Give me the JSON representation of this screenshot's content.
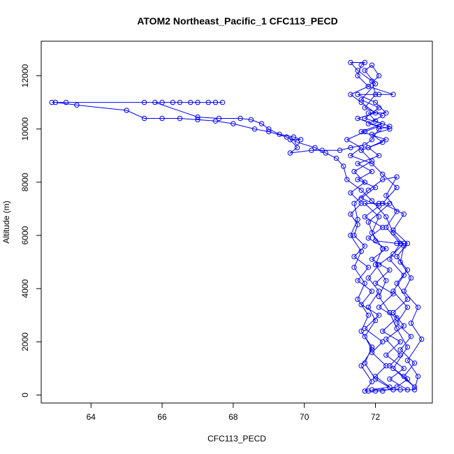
{
  "chart_data": {
    "type": "scatter",
    "title": "ATOM2 Northeast_Pacific_1 CFC113_PECD",
    "xlabel": "CFC113_PECD",
    "ylabel": "Altitude (m)",
    "xlim": [
      62.6,
      73.6
    ],
    "ylim": [
      -300,
      13300
    ],
    "x_ticks": [
      64,
      66,
      68,
      70,
      72
    ],
    "x_tick_labels": [
      "64",
      "66",
      "68",
      "70",
      "72"
    ],
    "y_ticks": [
      0,
      2000,
      4000,
      6000,
      8000,
      10000,
      12000
    ],
    "y_tick_labels": [
      "0",
      "2000",
      "4000",
      "6000",
      "8000",
      "10000",
      "12000"
    ],
    "grid": false,
    "legend": "none",
    "color": "#0000ff",
    "marker": "open-circle",
    "series": [
      {
        "points": [
          [
            71.8,
            150
          ],
          [
            72.2,
            150
          ],
          [
            72.6,
            300
          ],
          [
            72.9,
            600
          ],
          [
            72.4,
            1100
          ],
          [
            72.7,
            1500
          ],
          [
            72.3,
            2100
          ],
          [
            72.8,
            2600
          ],
          [
            72.5,
            3100
          ],
          [
            72.9,
            3600
          ],
          [
            72.6,
            4200
          ],
          [
            72.9,
            4700
          ],
          [
            72.6,
            5200
          ],
          [
            72.9,
            5700
          ],
          [
            72.5,
            6200
          ],
          [
            72.8,
            6800
          ],
          [
            72.2,
            7200
          ],
          [
            72.6,
            7800
          ],
          [
            72.2,
            8300
          ],
          [
            71.9,
            8700
          ],
          [
            71.3,
            9000
          ],
          [
            71.6,
            9300
          ],
          [
            71.2,
            9600
          ],
          [
            71.7,
            9900
          ],
          [
            72.1,
            10100
          ],
          [
            71.5,
            10400
          ],
          [
            72.0,
            10600
          ],
          [
            71.6,
            11000
          ],
          [
            71.3,
            11300
          ],
          [
            71.8,
            11600
          ],
          [
            71.5,
            12000
          ],
          [
            71.6,
            12400
          ],
          [
            71.7,
            12500
          ],
          [
            71.3,
            12500
          ],
          [
            71.5,
            12200
          ],
          [
            71.9,
            11800
          ],
          [
            72.0,
            11300
          ],
          [
            71.7,
            10800
          ],
          [
            72.2,
            10500
          ],
          [
            71.8,
            10200
          ],
          [
            72.4,
            10000
          ],
          [
            71.9,
            9800
          ],
          [
            72.2,
            9500
          ],
          [
            71.6,
            9200
          ],
          [
            71.9,
            8800
          ],
          [
            71.4,
            8400
          ],
          [
            71.7,
            8000
          ],
          [
            71.3,
            7600
          ],
          [
            71.6,
            7200
          ],
          [
            71.3,
            6800
          ],
          [
            71.5,
            6400
          ],
          [
            71.4,
            6000
          ],
          [
            71.7,
            5600
          ],
          [
            71.4,
            5200
          ],
          [
            71.8,
            4800
          ],
          [
            71.5,
            4300
          ],
          [
            71.9,
            3900
          ],
          [
            71.6,
            3400
          ],
          [
            72.1,
            3000
          ],
          [
            71.7,
            2500
          ],
          [
            72.2,
            2000
          ],
          [
            71.9,
            1600
          ],
          [
            72.3,
            1100
          ],
          [
            72.0,
            700
          ],
          [
            72.4,
            300
          ],
          [
            71.9,
            200
          ],
          [
            72.7,
            200
          ],
          [
            73.1,
            200
          ],
          [
            73.2,
            700
          ],
          [
            72.9,
            1300
          ],
          [
            73.3,
            2100
          ],
          [
            73.0,
            2700
          ],
          [
            73.2,
            3300
          ],
          [
            72.8,
            3900
          ],
          [
            73.0,
            4400
          ],
          [
            72.7,
            5000
          ],
          [
            72.8,
            5600
          ],
          [
            72.5,
            6100
          ],
          [
            72.3,
            6700
          ],
          [
            71.9,
            7300
          ],
          [
            71.6,
            7700
          ],
          [
            71.2,
            8100
          ],
          [
            71.1,
            8600
          ],
          [
            70.9,
            8900
          ],
          [
            70.6,
            9100
          ],
          [
            70.3,
            9300
          ],
          [
            69.8,
            9500
          ],
          [
            69.5,
            9700
          ],
          [
            69.0,
            9900
          ],
          [
            68.6,
            10000
          ],
          [
            68.0,
            10200
          ],
          [
            67.5,
            10300
          ],
          [
            67.0,
            10350
          ],
          [
            66.5,
            10400
          ],
          [
            66.0,
            10400
          ],
          [
            65.5,
            10400
          ],
          [
            65.0,
            10700
          ],
          [
            63.6,
            10900
          ],
          [
            63.0,
            11000
          ],
          [
            62.9,
            11000
          ],
          [
            63.3,
            11000
          ],
          [
            65.5,
            11000
          ],
          [
            66.0,
            11000
          ],
          [
            66.5,
            11000
          ],
          [
            67.0,
            11000
          ],
          [
            67.5,
            11000
          ],
          [
            67.7,
            11000
          ],
          [
            67.3,
            11000
          ],
          [
            66.8,
            11000
          ],
          [
            66.3,
            11000
          ],
          [
            65.8,
            11000
          ],
          [
            67.0,
            10450
          ],
          [
            67.6,
            10400
          ],
          [
            68.2,
            10400
          ],
          [
            68.5,
            10350
          ],
          [
            68.8,
            10200
          ],
          [
            69.0,
            10000
          ],
          [
            69.3,
            9800
          ],
          [
            69.7,
            9700
          ],
          [
            69.9,
            9600
          ],
          [
            69.6,
            9600
          ],
          [
            69.8,
            9300
          ],
          [
            69.6,
            9100
          ],
          [
            70.2,
            9200
          ],
          [
            70.5,
            9200
          ],
          [
            71.0,
            9200
          ],
          [
            71.3,
            9300
          ],
          [
            71.7,
            9400
          ],
          [
            71.9,
            9600
          ],
          [
            72.1,
            10000
          ],
          [
            72.4,
            10100
          ],
          [
            72.0,
            10300
          ],
          [
            71.8,
            10600
          ],
          [
            72.3,
            10600
          ],
          [
            72.0,
            11000
          ],
          [
            71.5,
            11300
          ],
          [
            72.1,
            11300
          ],
          [
            72.5,
            11300
          ],
          [
            71.8,
            11600
          ],
          [
            72.1,
            12000
          ],
          [
            71.9,
            12400
          ],
          [
            71.7,
            12200
          ],
          [
            72.0,
            11700
          ],
          [
            71.6,
            11100
          ],
          [
            72.1,
            10800
          ],
          [
            71.7,
            10400
          ],
          [
            72.2,
            10200
          ],
          [
            71.6,
            9900
          ],
          [
            72.3,
            9600
          ],
          [
            71.8,
            9300
          ],
          [
            72.1,
            9000
          ],
          [
            71.5,
            8700
          ],
          [
            71.9,
            8400
          ],
          [
            71.5,
            8100
          ],
          [
            72.0,
            7800
          ],
          [
            71.6,
            7400
          ],
          [
            72.1,
            7100
          ],
          [
            71.7,
            6700
          ],
          [
            72.2,
            6300
          ],
          [
            71.8,
            5900
          ],
          [
            72.3,
            5500
          ],
          [
            71.9,
            5100
          ],
          [
            72.4,
            4700
          ],
          [
            72.0,
            4200
          ],
          [
            72.5,
            3800
          ],
          [
            72.1,
            3300
          ],
          [
            72.6,
            2900
          ],
          [
            72.2,
            2400
          ],
          [
            72.7,
            2000
          ],
          [
            72.3,
            1500
          ],
          [
            72.8,
            1000
          ],
          [
            72.4,
            600
          ],
          [
            72.9,
            200
          ],
          [
            72.5,
            200
          ],
          [
            72.0,
            600
          ],
          [
            71.7,
            1200
          ],
          [
            71.9,
            1800
          ],
          [
            71.6,
            2400
          ],
          [
            71.8,
            3000
          ],
          [
            71.5,
            3600
          ],
          [
            71.7,
            4200
          ],
          [
            71.4,
            4800
          ],
          [
            71.6,
            5400
          ],
          [
            71.3,
            6000
          ],
          [
            71.5,
            6600
          ],
          [
            71.4,
            7200
          ],
          [
            71.8,
            7700
          ],
          [
            72.2,
            8100
          ],
          [
            72.6,
            8200
          ],
          [
            72.3,
            7500
          ],
          [
            72.6,
            6900
          ],
          [
            72.3,
            6300
          ],
          [
            72.7,
            5700
          ],
          [
            72.4,
            5100
          ],
          [
            72.8,
            4500
          ],
          [
            72.5,
            3900
          ],
          [
            72.9,
            3300
          ],
          [
            72.6,
            2700
          ],
          [
            73.0,
            2200
          ],
          [
            72.7,
            1700
          ],
          [
            73.1,
            1200
          ],
          [
            72.8,
            700
          ],
          [
            73.1,
            300
          ],
          [
            72.5,
            1000
          ],
          [
            72.9,
            1800
          ],
          [
            72.6,
            2500
          ],
          [
            72.4,
            3100
          ],
          [
            72.1,
            3700
          ],
          [
            72.3,
            4300
          ],
          [
            72.0,
            4900
          ],
          [
            72.2,
            5500
          ],
          [
            71.9,
            6100
          ],
          [
            72.1,
            6700
          ],
          [
            71.7,
            7200
          ],
          [
            72.1,
            7200
          ],
          [
            72.4,
            7200
          ],
          [
            71.8,
            6500
          ],
          [
            72.0,
            5800
          ],
          [
            72.6,
            5700
          ],
          [
            72.8,
            5700
          ],
          [
            72.5,
            5300
          ],
          [
            72.1,
            4900
          ],
          [
            71.8,
            4400
          ],
          [
            72.1,
            3900
          ],
          [
            71.8,
            3300
          ],
          [
            72.0,
            2800
          ],
          [
            71.7,
            2200
          ],
          [
            71.9,
            1700
          ],
          [
            71.6,
            1100
          ],
          [
            71.9,
            500
          ],
          [
            71.7,
            150
          ],
          [
            72.0,
            150
          ]
        ]
      }
    ]
  }
}
